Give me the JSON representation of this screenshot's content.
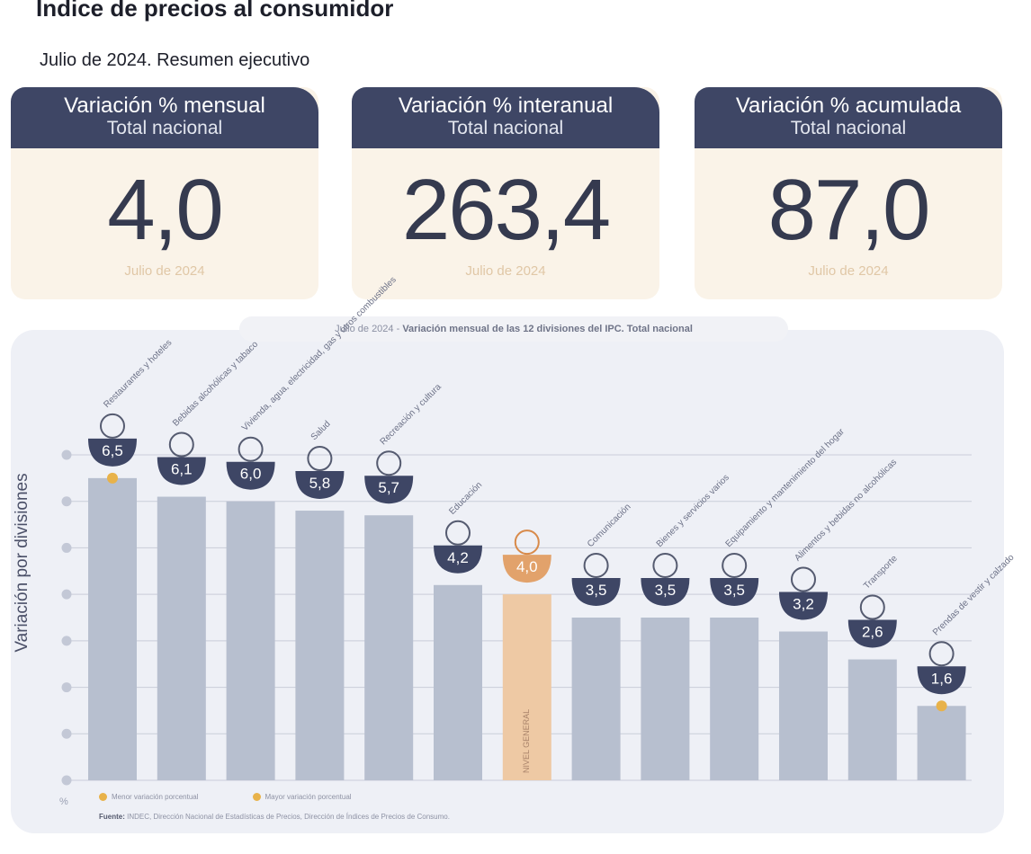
{
  "header": {
    "title": "Indice de precios al consumidor",
    "subtitle": "Julio de 2024. Resumen ejecutivo"
  },
  "cards": [
    {
      "title": "Variación % mensual",
      "subtitle": "Total nacional",
      "value": "4,0",
      "date": "Julio de 2024"
    },
    {
      "title": "Variación % interanual",
      "subtitle": "Total nacional",
      "value": "263,4",
      "date": "Julio de 2024"
    },
    {
      "title": "Variación % acumulada",
      "subtitle": "Total nacional",
      "value": "87,0",
      "date": "Julio de 2024"
    }
  ],
  "chart_data": {
    "type": "bar",
    "title_prefix": "Julio de 2024",
    "title": "Variación mensual de las 12 divisiones del IPC. Total nacional",
    "ylabel": "Variación por divisiones",
    "yunit": "%",
    "ylim": [
      0,
      7
    ],
    "grid": true,
    "categories": [
      "Restaurantes y hoteles",
      "Bebidas alcohólicas y tabaco",
      "Vivienda, agua, electricidad, gas y otros combustibles",
      "Salud",
      "Recreación y cultura",
      "Educación",
      "Nivel general",
      "Comunicación",
      "Bienes y servicios varios",
      "Equipamiento y mantenimiento del hogar",
      "Alimentos y bebidas no alcohólicas",
      "Transporte",
      "Prendas de vestir y calzado"
    ],
    "values": [
      6.5,
      6.1,
      6.0,
      5.8,
      5.7,
      4.2,
      4.0,
      3.5,
      3.5,
      3.5,
      3.2,
      2.6,
      1.6
    ],
    "value_labels": [
      "6,5",
      "6,1",
      "6,0",
      "5,8",
      "5,7",
      "4,2",
      "4,0",
      "3,5",
      "3,5",
      "3,5",
      "3,2",
      "2,6",
      "1,6"
    ],
    "highlight_index": 6,
    "highlight_label": "NIVEL GENERAL",
    "max_index": 0,
    "min_index": 12
  },
  "legend": {
    "min_label": "Menor variación porcentual",
    "max_label": "Mayor variación porcentual"
  },
  "source": {
    "label": "Fuente:",
    "text": "INDEC, Dirección Nacional de Estadísticas de Precios, Dirección de Índices de Precios de Consumo."
  },
  "colors": {
    "bar": "#b7bfcf",
    "highlight_bar": "#eec9a4",
    "bowl": "#3e4665",
    "highlight_bowl": "#e2a26b",
    "marker": "#e8b24a",
    "grid": "#c9cdd9"
  }
}
